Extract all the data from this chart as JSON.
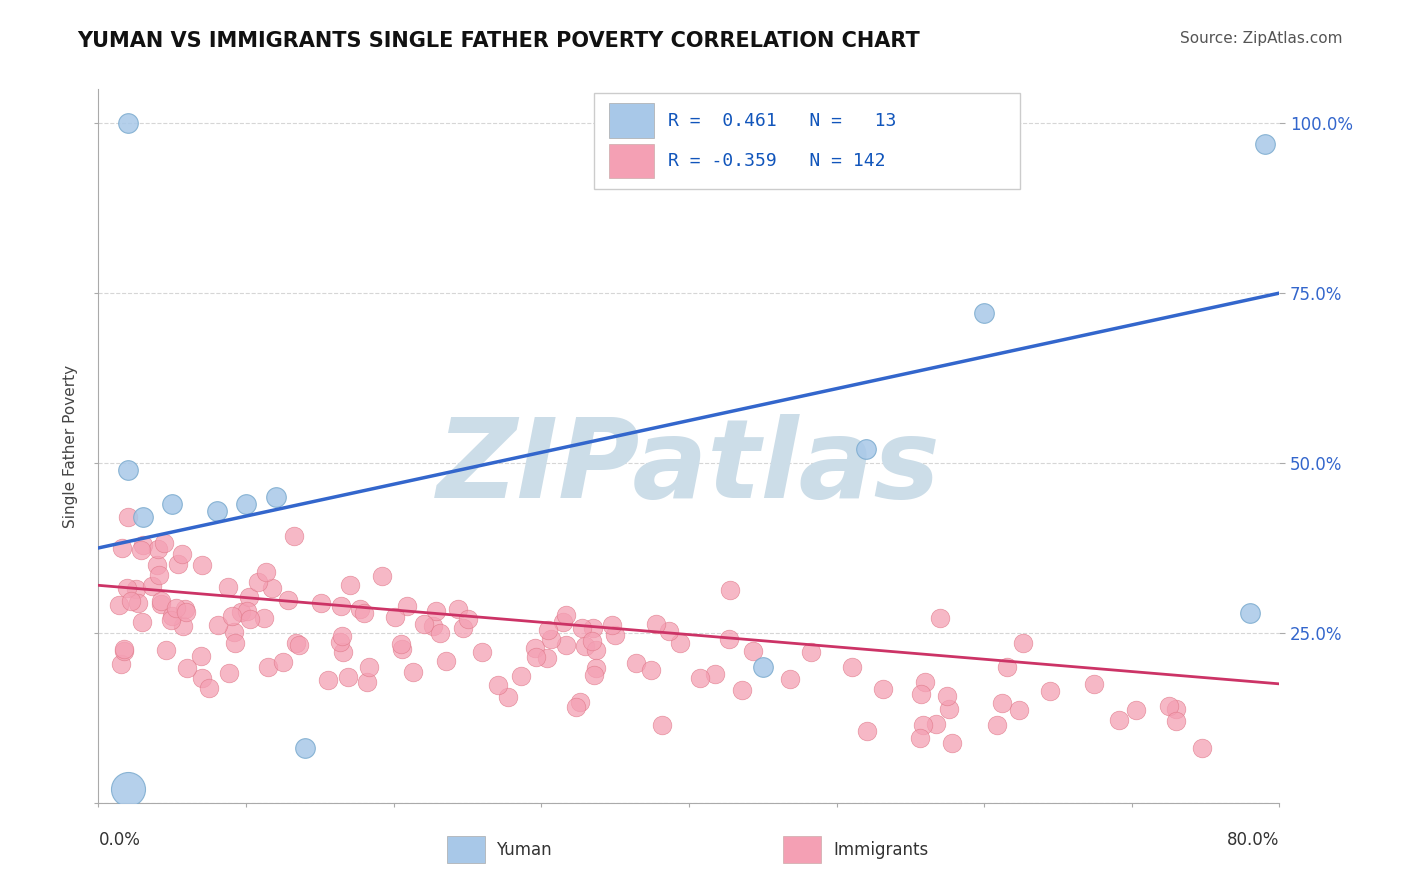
{
  "title": "YUMAN VS IMMIGRANTS SINGLE FATHER POVERTY CORRELATION CHART",
  "source": "Source: ZipAtlas.com",
  "ylabel": "Single Father Poverty",
  "yuman_R": 0.461,
  "yuman_N": 13,
  "immigrants_R": -0.359,
  "immigrants_N": 142,
  "xlim": [
    0.0,
    0.8
  ],
  "ylim": [
    0.0,
    1.05
  ],
  "yuman_color": "#a8c8e8",
  "yuman_edge_color": "#7aaace",
  "immigrants_color": "#f4a0b4",
  "immigrants_edge_color": "#e07888",
  "yuman_line_color": "#3366cc",
  "immigrants_line_color": "#cc3366",
  "background_color": "#ffffff",
  "grid_color": "#cccccc",
  "watermark": "ZIPatlas",
  "watermark_color": "#ccdde8",
  "title_fontsize": 15,
  "source_fontsize": 11,
  "legend_R1": "R =  0.461   N =   13",
  "legend_R2": "R = -0.359   N = 142",
  "yuman_line_start_y": 0.375,
  "yuman_line_end_y": 0.75,
  "immigrants_line_start_y": 0.32,
  "immigrants_line_end_y": 0.175
}
